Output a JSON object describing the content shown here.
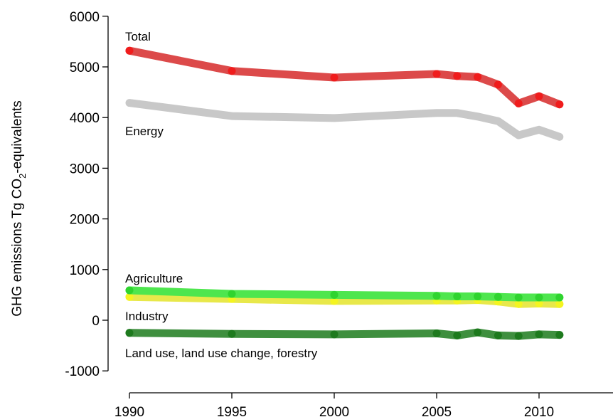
{
  "chart_data": {
    "type": "line",
    "title": "",
    "xlabel": "",
    "ylabel": {
      "prefix": "GHG emissions Tg CO",
      "subscript": "2",
      "suffix": "-equivalents"
    },
    "xlim": [
      1990,
      2014
    ],
    "ylim": [
      -1000,
      6000
    ],
    "x_ticks": [
      1990,
      1995,
      2000,
      2005,
      2010
    ],
    "y_ticks": [
      6000,
      5000,
      4000,
      3000,
      2000,
      1000,
      0,
      -1000
    ],
    "grid": false,
    "legend": "none (series labelled directly on plot)",
    "series": [
      {
        "name": "Energy",
        "color": "#c8c8c8",
        "x": [
          1990,
          1995,
          2000,
          2005,
          2006,
          2007,
          2008,
          2009,
          2010,
          2011
        ],
        "values": [
          4290,
          4030,
          3990,
          4090,
          4090,
          4020,
          3930,
          3650,
          3760,
          3620
        ],
        "markers": false
      },
      {
        "name": "Total",
        "color": "#dc4a4a",
        "marker_color": "#f01c1c",
        "x": [
          1990,
          1995,
          2000,
          2005,
          2006,
          2007,
          2008,
          2009,
          2010,
          2011
        ],
        "values": [
          5320,
          4920,
          4790,
          4860,
          4820,
          4800,
          4650,
          4280,
          4420,
          4260
        ],
        "markers": true
      },
      {
        "name": "Industry",
        "color": "#e8e84a",
        "marker_color": "#f4f420",
        "x": [
          1990,
          1995,
          2000,
          2005,
          2006,
          2007,
          2008,
          2009,
          2010,
          2011
        ],
        "values": [
          460,
          420,
          380,
          390,
          390,
          400,
          370,
          320,
          330,
          320
        ],
        "markers": true
      },
      {
        "name": "Agriculture",
        "color": "#4ee64e",
        "marker_color": "#2fd42f",
        "x": [
          1990,
          1995,
          2000,
          2005,
          2006,
          2007,
          2008,
          2009,
          2010,
          2011
        ],
        "values": [
          590,
          520,
          500,
          480,
          470,
          470,
          460,
          450,
          450,
          450
        ],
        "markers": true
      },
      {
        "name": "Land use, land use change, forestry",
        "color": "#3f8f3f",
        "marker_color": "#1e7a1e",
        "x": [
          1990,
          1995,
          2000,
          2005,
          2006,
          2007,
          2008,
          2009,
          2010,
          2011
        ],
        "values": [
          -250,
          -270,
          -280,
          -260,
          -300,
          -240,
          -300,
          -310,
          -280,
          -290
        ],
        "markers": true
      }
    ]
  }
}
